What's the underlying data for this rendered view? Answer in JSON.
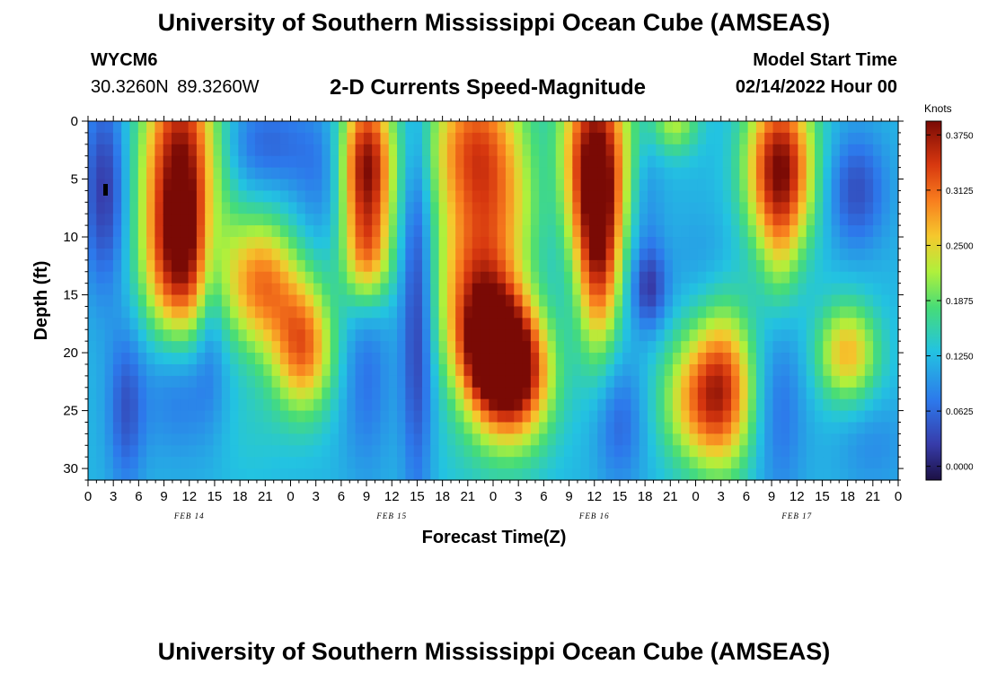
{
  "header": {
    "title": "University of Southern Mississippi Ocean Cube (AMSEAS)",
    "station": "WYCM6",
    "coordinates": "30.3260N  89.3260W",
    "subtitle": "2-D Currents Speed-Magnitude",
    "model_start_label": "Model Start Time",
    "model_start_value": "02/14/2022 Hour 00"
  },
  "footer": {
    "title": "University of Southern Mississippi Ocean Cube (AMSEAS)"
  },
  "chart_data": {
    "type": "heatmap",
    "title": "2-D Currents Speed-Magnitude",
    "xlabel": "Forecast Time(Z)",
    "ylabel": "Depth (ft)",
    "x_unit": "hours since 02/14/2022 00Z",
    "xlim": [
      0,
      96
    ],
    "ylim": [
      0,
      31
    ],
    "y_inverted": true,
    "x_ticks": [
      0,
      3,
      6,
      9,
      12,
      15,
      18,
      21,
      24,
      27,
      30,
      33,
      36,
      39,
      42,
      45,
      48,
      51,
      54,
      57,
      60,
      63,
      66,
      69,
      72,
      75,
      78,
      81,
      84,
      87,
      90,
      93,
      96
    ],
    "x_tick_labels": [
      "0",
      "3",
      "6",
      "9",
      "12",
      "15",
      "18",
      "21",
      "0",
      "3",
      "6",
      "9",
      "12",
      "15",
      "18",
      "21",
      "0",
      "3",
      "6",
      "9",
      "12",
      "15",
      "18",
      "21",
      "0",
      "3",
      "6",
      "9",
      "12",
      "15",
      "18",
      "21",
      "0"
    ],
    "y_ticks": [
      0,
      5,
      10,
      15,
      20,
      25,
      30
    ],
    "y_tick_labels": [
      "0",
      "5",
      "10",
      "15",
      "20",
      "25",
      "30"
    ],
    "date_labels": [
      {
        "x": 12,
        "label": "FEB 14"
      },
      {
        "x": 36,
        "label": "FEB 15"
      },
      {
        "x": 60,
        "label": "FEB 16"
      },
      {
        "x": 84,
        "label": "FEB 17"
      }
    ],
    "colorbar": {
      "label": "Knots",
      "min": -0.0156,
      "max": 0.3906,
      "ticks": [
        0.0,
        0.0625,
        0.125,
        0.1875,
        0.25,
        0.3125,
        0.375
      ],
      "tick_labels": [
        "0.0000",
        "0.0625",
        "0.1250",
        "0.1875",
        "0.2500",
        "0.3125",
        "0.3750"
      ]
    },
    "field": {
      "description": "Approximate current speed (knots) as smooth features over time (hours) and depth (ft)",
      "background": 0.12,
      "features": [
        {
          "t": 2,
          "d": 6,
          "st": 1.8,
          "sd": 6,
          "v": -0.1
        },
        {
          "t": 14.5,
          "d": 14,
          "st": 1.3,
          "sd": 6,
          "v": -0.07
        },
        {
          "t": 4.5,
          "d": 25,
          "st": 1.5,
          "sd": 5,
          "v": -0.07
        },
        {
          "t": 11,
          "d": 4,
          "st": 3.2,
          "sd": 7,
          "v": 0.27
        },
        {
          "t": 11,
          "d": 13,
          "st": 3.0,
          "sd": 4.5,
          "v": 0.16
        },
        {
          "t": 11,
          "d": 23,
          "st": 3.5,
          "sd": 4,
          "v": -0.05
        },
        {
          "t": 21,
          "d": 2,
          "st": 4,
          "sd": 3,
          "v": -0.06
        },
        {
          "t": 20.5,
          "d": 14,
          "st": 3,
          "sd": 4,
          "v": 0.18
        },
        {
          "t": 25.5,
          "d": 19.5,
          "st": 2.5,
          "sd": 4,
          "v": 0.19
        },
        {
          "t": 19,
          "d": 26,
          "st": 3,
          "sd": 4,
          "v": 0.02
        },
        {
          "t": 28,
          "d": 5,
          "st": 2.5,
          "sd": 4,
          "v": -0.04
        },
        {
          "t": 33,
          "d": 4,
          "st": 2.2,
          "sd": 5,
          "v": 0.27
        },
        {
          "t": 33,
          "d": 12,
          "st": 2,
          "sd": 3,
          "v": 0.12
        },
        {
          "t": 33,
          "d": 22,
          "st": 2,
          "sd": 6,
          "v": -0.05
        },
        {
          "t": 39,
          "d": 16,
          "st": 1.3,
          "sd": 12,
          "v": -0.1
        },
        {
          "t": 46,
          "d": 2,
          "st": 4,
          "sd": 5,
          "v": 0.2
        },
        {
          "t": 46,
          "d": 14,
          "st": 3.5,
          "sd": 5,
          "v": 0.16
        },
        {
          "t": 48,
          "d": 20,
          "st": 3,
          "sd": 4,
          "v": 0.27
        },
        {
          "t": 51,
          "d": 22,
          "st": 3,
          "sd": 4,
          "v": 0.2
        },
        {
          "t": 50,
          "d": 8,
          "st": 4,
          "sd": 4,
          "v": 0.06
        },
        {
          "t": 47,
          "d": 29,
          "st": 5,
          "sd": 3,
          "v": 0.02
        },
        {
          "t": 60,
          "d": 3,
          "st": 3,
          "sd": 6,
          "v": 0.25
        },
        {
          "t": 60.5,
          "d": 12,
          "st": 1.8,
          "sd": 6,
          "v": 0.19
        },
        {
          "t": 63,
          "d": 26,
          "st": 2,
          "sd": 4,
          "v": -0.06
        },
        {
          "t": 55,
          "d": 6,
          "st": 2,
          "sd": 5,
          "v": -0.04
        },
        {
          "t": 66,
          "d": 7,
          "st": 1.5,
          "sd": 5,
          "v": -0.04
        },
        {
          "t": 66.5,
          "d": 14.5,
          "st": 1.5,
          "sd": 2.5,
          "v": -0.09
        },
        {
          "t": 69.5,
          "d": 0,
          "st": 2,
          "sd": 2,
          "v": 0.1
        },
        {
          "t": 72,
          "d": 24,
          "st": 3,
          "sd": 4,
          "v": 0.14
        },
        {
          "t": 75.5,
          "d": 23,
          "st": 2.5,
          "sd": 5,
          "v": 0.17
        },
        {
          "t": 73,
          "d": 12,
          "st": 3,
          "sd": 3,
          "v": -0.02
        },
        {
          "t": 82,
          "d": 4,
          "st": 2.8,
          "sd": 5,
          "v": 0.27
        },
        {
          "t": 82,
          "d": 12,
          "st": 1.6,
          "sd": 4,
          "v": 0.05
        },
        {
          "t": 82,
          "d": 25,
          "st": 2,
          "sd": 6,
          "v": -0.05
        },
        {
          "t": 91,
          "d": 6,
          "st": 2.5,
          "sd": 3.5,
          "v": -0.08
        },
        {
          "t": 90,
          "d": 20,
          "st": 2.5,
          "sd": 3,
          "v": 0.15
        },
        {
          "t": 93,
          "d": 28,
          "st": 3,
          "sd": 3,
          "v": -0.03
        }
      ]
    }
  }
}
